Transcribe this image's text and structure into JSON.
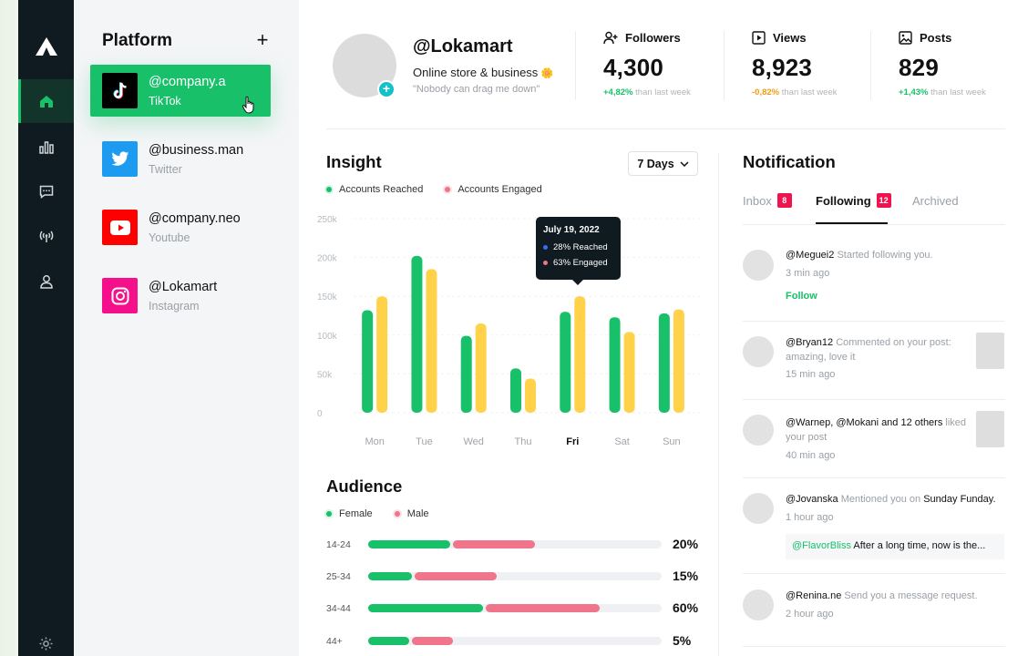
{
  "platform_panel": {
    "title": "Platform",
    "add_label": "+",
    "items": [
      {
        "handle": "@company.a",
        "network": "TikTok",
        "active": true,
        "color": "#000000"
      },
      {
        "handle": "@business.man",
        "network": "Twitter",
        "active": false,
        "color": "#1d9bf0"
      },
      {
        "handle": "@company.neo",
        "network": "Youtube",
        "active": false,
        "color": "#ff0000"
      },
      {
        "handle": "@Lokamart",
        "network": "Instagram",
        "active": false,
        "color": "#f50f8a"
      }
    ]
  },
  "profile": {
    "handle": "@Lokamart",
    "bio": "Online store & business",
    "bio_emoji": "🌼",
    "quote": "\"Nobody can drag me down\"",
    "add_label": "+"
  },
  "stats": [
    {
      "label": "Followers",
      "icon": "user-plus-icon",
      "value": "4,300",
      "delta": "+4,82%",
      "direction": "up",
      "suffix": "than last week"
    },
    {
      "label": "Views",
      "icon": "play-square-icon",
      "value": "8,923",
      "delta": "-0,82%",
      "direction": "down",
      "suffix": "than last week"
    },
    {
      "label": "Posts",
      "icon": "image-icon",
      "value": "829",
      "delta": "+1,43%",
      "direction": "up",
      "suffix": "than last week"
    }
  ],
  "insight": {
    "title": "Insight",
    "range_label": "7 Days",
    "legend": [
      {
        "label": "Accounts Reached",
        "color": "#18c06a"
      },
      {
        "label": "Accounts Engaged",
        "color": "#f0748a"
      }
    ],
    "tooltip": {
      "date": "July 19, 2022",
      "rows": [
        {
          "label": "28% Reached",
          "color": "#3b6cf6"
        },
        {
          "label": "63% Engaged",
          "color": "#f0748a"
        }
      ]
    }
  },
  "chart_data": {
    "type": "bar",
    "categories": [
      "Mon",
      "Tue",
      "Wed",
      "Thu",
      "Fri",
      "Sat",
      "Sun"
    ],
    "highlight_category": "Fri",
    "series": [
      {
        "name": "Accounts Reached",
        "color": "#18c06a",
        "values": [
          132000,
          202000,
          99000,
          57000,
          130000,
          123000,
          128000
        ]
      },
      {
        "name": "Accounts Engaged",
        "color": "#ffd24a",
        "values": [
          150000,
          185000,
          115000,
          44000,
          150000,
          104000,
          133000
        ]
      }
    ],
    "ylim": [
      0,
      250000
    ],
    "yticks": [
      "0",
      "50k",
      "100k",
      "150k",
      "200k",
      "250k"
    ],
    "grid": true
  },
  "audience": {
    "title": "Audience",
    "legend": [
      {
        "label": "Female",
        "color": "#18c06a"
      },
      {
        "label": "Male",
        "color": "#f0748a"
      }
    ],
    "rows": [
      {
        "age": "14-24",
        "female": 0.28,
        "male": 0.28,
        "pct": "20%"
      },
      {
        "age": "25-34",
        "female": 0.15,
        "male": 0.28,
        "pct": "15%"
      },
      {
        "age": "34-44",
        "female": 0.39,
        "male": 0.39,
        "pct": "60%"
      },
      {
        "age": "44+",
        "female": 0.14,
        "male": 0.14,
        "pct": "5%"
      }
    ]
  },
  "notifications": {
    "title": "Notification",
    "tabs": [
      {
        "label": "Inbox",
        "count": "8",
        "active": false
      },
      {
        "label": "Following",
        "count": "12",
        "active": true
      },
      {
        "label": "Archived",
        "count": "",
        "active": false
      }
    ],
    "items": [
      {
        "user": "@Meguei2",
        "text": "Started following you.",
        "time": "3 min ago",
        "action": "Follow"
      },
      {
        "user": "@Bryan12",
        "text": "Commented on your post: amazing, love it",
        "time": "15 min ago"
      },
      {
        "user": "@Warnep, @Mokani and 12 others",
        "text": "liked your post",
        "time": "40 min ago"
      },
      {
        "user": "@Jovanska",
        "text": "Mentioned you on",
        "target": "Sunday Funday.",
        "time": "1 hour ago",
        "quote_tag": "@FlavorBliss",
        "quote_text": "After a long time, now is the..."
      },
      {
        "user": "@Renina.ne",
        "text": "Send you a message request.",
        "time": "2 hour ago"
      }
    ]
  }
}
